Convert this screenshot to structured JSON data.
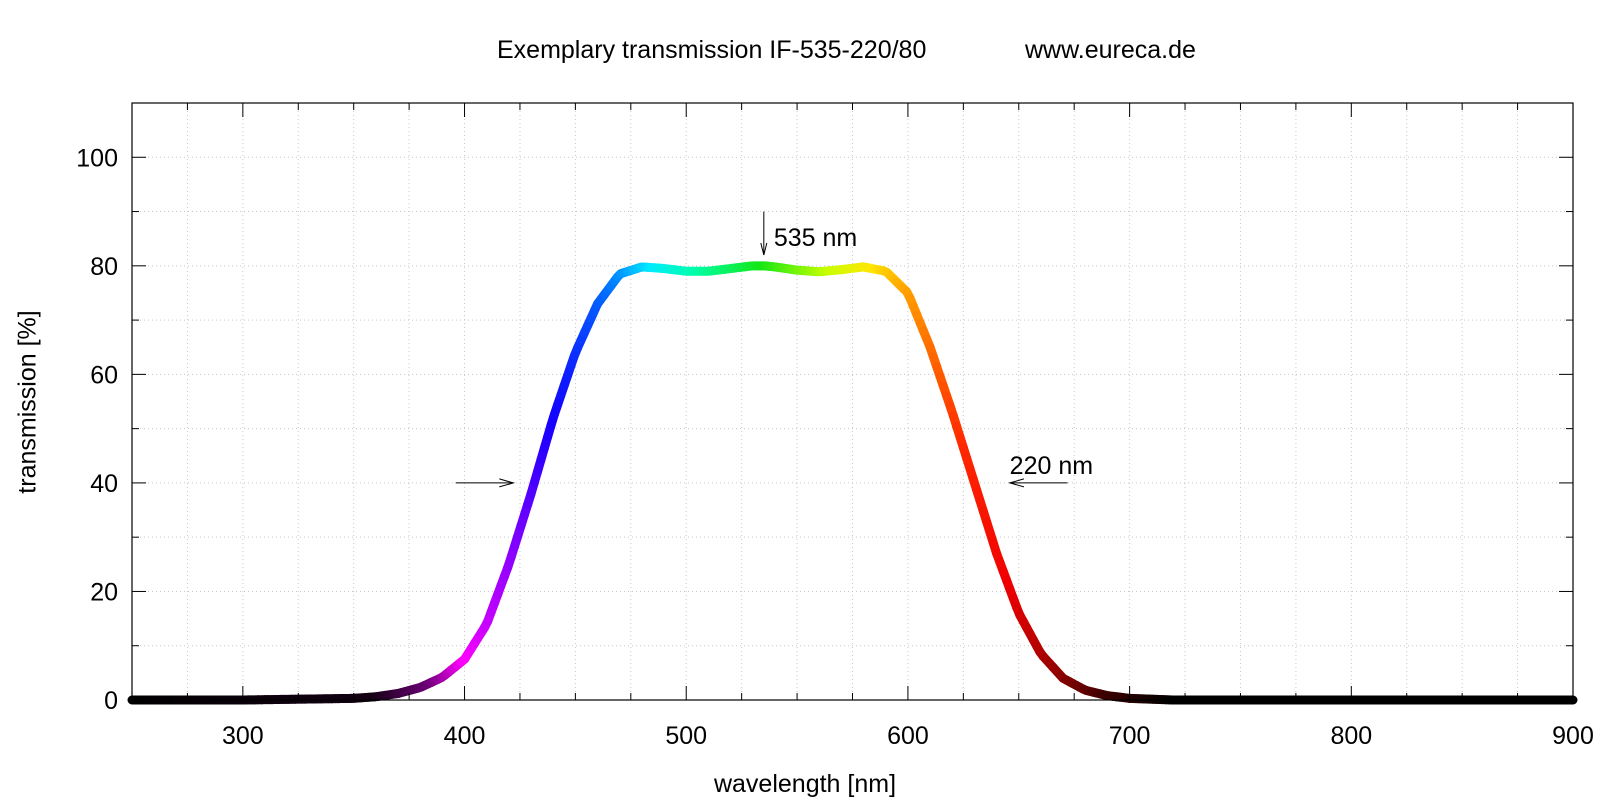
{
  "header": {
    "title": "Exemplary transmission IF-535-220/80",
    "url": "www.eureca.de"
  },
  "chart_data": {
    "type": "line",
    "title": "Exemplary transmission IF-535-220/80",
    "xlabel": "wavelength [nm]",
    "ylabel": "transmission [%]",
    "xlim": [
      250,
      900
    ],
    "ylim": [
      0,
      110
    ],
    "x_ticks": [
      300,
      400,
      500,
      600,
      700,
      800,
      900
    ],
    "y_ticks": [
      0,
      20,
      40,
      60,
      80,
      100
    ],
    "grid": true,
    "legend": "none",
    "series": [
      {
        "x": [
          250,
          300,
          350,
          360,
          370,
          380,
          390,
          400,
          410,
          420,
          430,
          440,
          450,
          460,
          470,
          480,
          490,
          500,
          510,
          520,
          530,
          535,
          540,
          550,
          560,
          570,
          580,
          590,
          600,
          610,
          620,
          630,
          640,
          650,
          660,
          670,
          680,
          690,
          700,
          720,
          750,
          800,
          850,
          900
        ],
        "y": [
          0,
          0,
          0.3,
          0.6,
          1.2,
          2.3,
          4.2,
          7.5,
          14,
          25,
          38,
          52,
          64,
          73,
          78.5,
          79.8,
          79.5,
          79,
          79,
          79.5,
          80,
          80,
          79.8,
          79.2,
          78.9,
          79.3,
          79.8,
          79,
          75,
          65,
          53,
          40,
          27,
          16,
          8.5,
          4,
          1.8,
          0.8,
          0.3,
          0,
          0,
          0,
          0,
          0
        ]
      }
    ],
    "annotations": [
      {
        "text": "535 nm",
        "x": 535
      },
      {
        "text": "220 nm",
        "x": 645
      }
    ]
  }
}
